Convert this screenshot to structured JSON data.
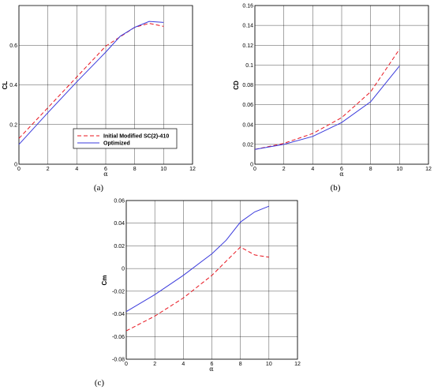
{
  "colors": {
    "initial": "#e8141e",
    "optimized": "#3b3bdc",
    "grid": "#000000"
  },
  "legend": {
    "initial": "Initial Modified SC(2)-410",
    "optimized": "Optimized"
  },
  "chart_data": [
    {
      "type": "line",
      "panel": "(a)",
      "xlabel": "α",
      "ylabel": "CL",
      "xlim": [
        0,
        12
      ],
      "ylim": [
        0,
        0.8
      ],
      "xticks": [
        "0",
        "2",
        "4",
        "6",
        "8",
        "10",
        "12"
      ],
      "yticks": [
        "0",
        "0.2",
        "0.4",
        "0.6"
      ],
      "grid": true,
      "legend_placement": "bottom-right",
      "series": [
        {
          "name": "Initial Modified SC(2)-410",
          "style": "dashed",
          "x": [
            0,
            2,
            4,
            6,
            8,
            9,
            10
          ],
          "values": [
            0.13,
            0.285,
            0.44,
            0.595,
            0.69,
            0.71,
            0.695
          ]
        },
        {
          "name": "Optimized",
          "style": "solid",
          "x": [
            0,
            2,
            4,
            6,
            7,
            8,
            9,
            10
          ],
          "values": [
            0.1,
            0.26,
            0.415,
            0.565,
            0.645,
            0.69,
            0.72,
            0.715
          ]
        }
      ]
    },
    {
      "type": "line",
      "panel": "(b)",
      "xlabel": "α",
      "ylabel": "CD",
      "xlim": [
        0,
        12
      ],
      "ylim": [
        0,
        0.16
      ],
      "xticks": [
        "0",
        "2",
        "4",
        "6",
        "8",
        "10",
        "12"
      ],
      "yticks": [
        "0",
        "0.02",
        "0.04",
        "0.06",
        "0.08",
        "0.1",
        "0.12",
        "0.14",
        "0.16"
      ],
      "grid": true,
      "series": [
        {
          "name": "Initial Modified SC(2)-410",
          "style": "dashed",
          "x": [
            0,
            2,
            4,
            6,
            8,
            10
          ],
          "values": [
            0.015,
            0.021,
            0.031,
            0.047,
            0.073,
            0.116
          ]
        },
        {
          "name": "Optimized",
          "style": "solid",
          "x": [
            0,
            2,
            4,
            6,
            8,
            10
          ],
          "values": [
            0.015,
            0.02,
            0.028,
            0.042,
            0.063,
            0.099
          ]
        }
      ]
    },
    {
      "type": "line",
      "panel": "(c)",
      "xlabel": "α",
      "ylabel": "Cm",
      "xlim": [
        0,
        12
      ],
      "ylim": [
        -0.08,
        0.06
      ],
      "xticks": [
        "0",
        "2",
        "4",
        "6",
        "8",
        "10",
        "12"
      ],
      "yticks": [
        "-0.08",
        "-0.06",
        "-0.04",
        "-0.02",
        "0",
        "0.02",
        "0.04",
        "0.06"
      ],
      "grid": true,
      "series": [
        {
          "name": "Initial Modified SC(2)-410",
          "style": "dashed",
          "x": [
            0,
            2,
            4,
            6,
            8,
            9,
            10
          ],
          "values": [
            -0.055,
            -0.042,
            -0.026,
            -0.006,
            0.019,
            0.012,
            0.01
          ]
        },
        {
          "name": "Optimized",
          "style": "solid",
          "x": [
            0,
            2,
            4,
            6,
            7,
            8,
            9,
            10
          ],
          "values": [
            -0.038,
            -0.023,
            -0.006,
            0.013,
            0.025,
            0.041,
            0.05,
            0.055
          ]
        }
      ]
    }
  ]
}
